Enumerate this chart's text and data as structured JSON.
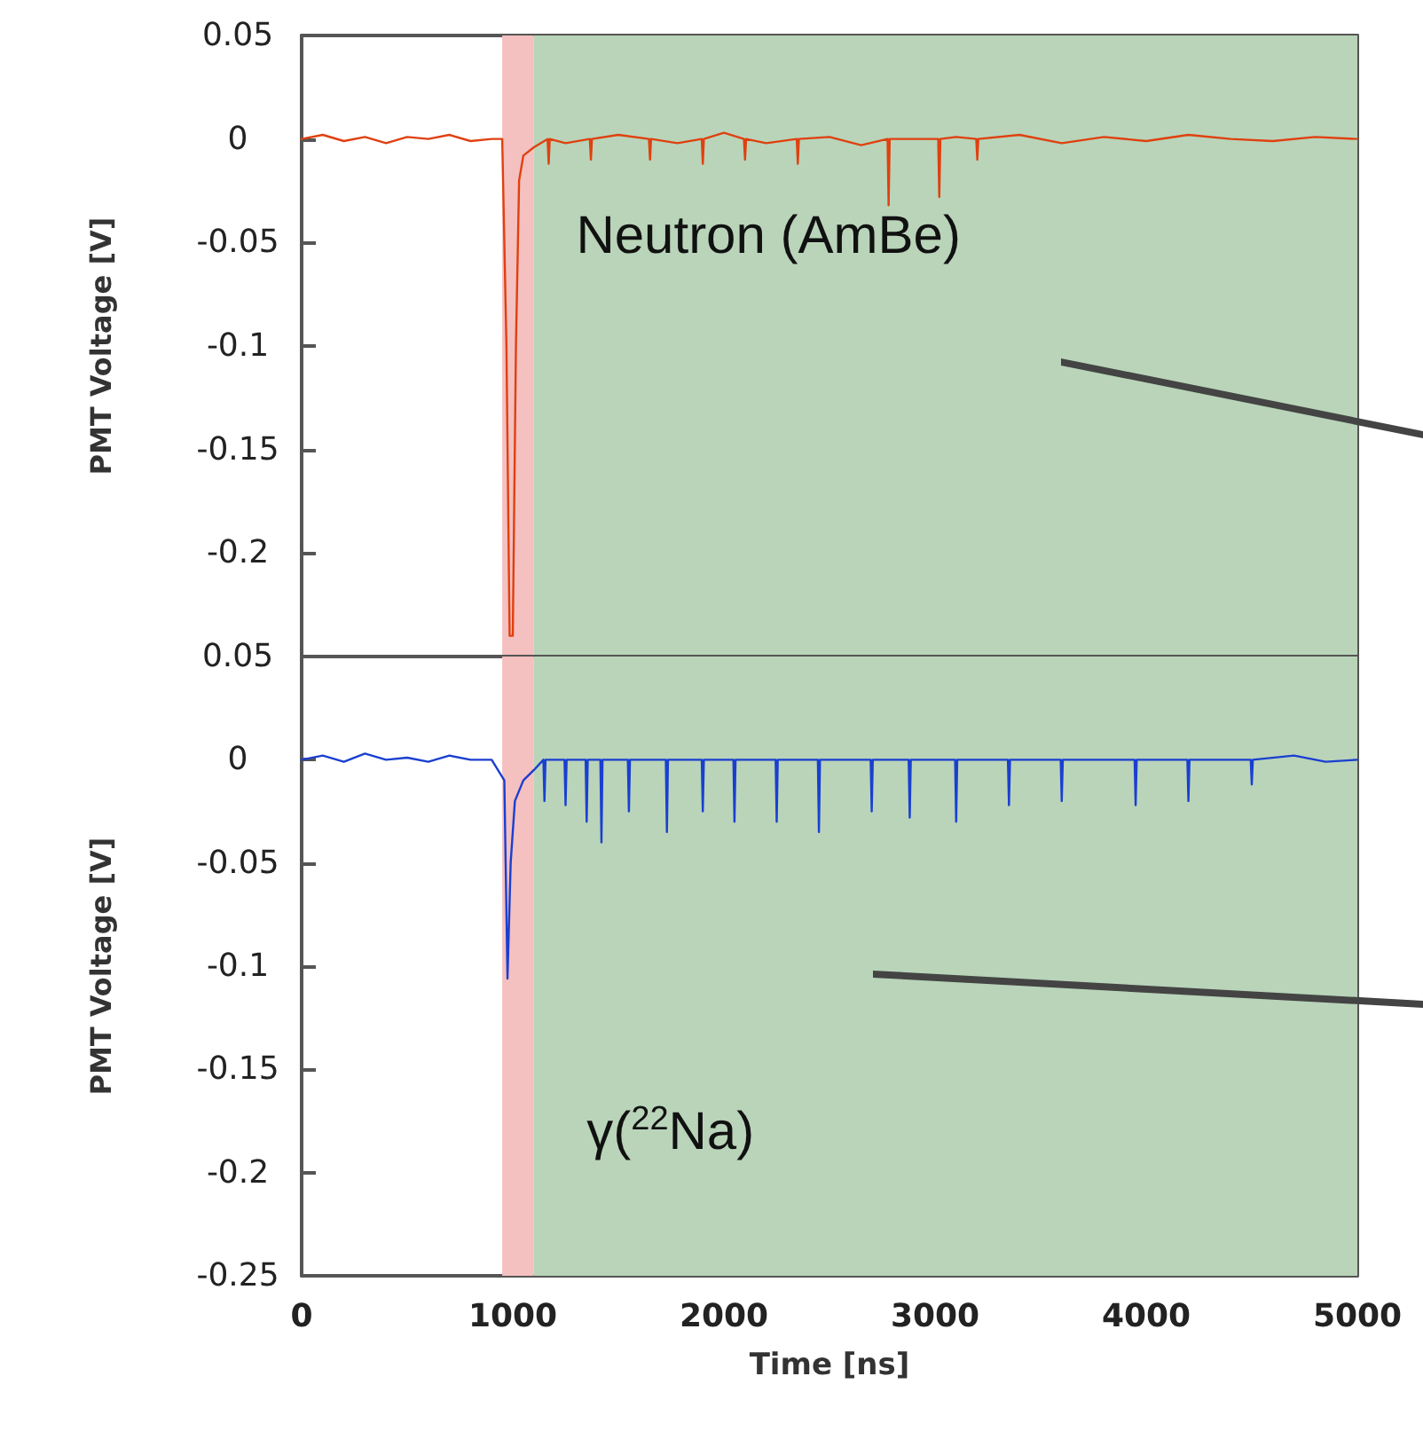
{
  "chart_data": [
    {
      "type": "line",
      "ylabel": "PMT Voltage [V]",
      "tick_labels": "y",
      "grid": false,
      "marker": "none",
      "annotations": [
        "Neutron (AmBe)"
      ],
      "xlim": [
        0,
        5000
      ],
      "xticks": [
        0,
        1000,
        2000,
        3000,
        4000,
        5000
      ],
      "ylim": [
        -0.25,
        0.05
      ],
      "yticks": [
        0.05,
        0,
        -0.05,
        -0.1,
        -0.15,
        -0.2,
        {
          "value": -0.25,
          "label": null
        }
      ],
      "bands": [
        {
          "axis": "x",
          "from": 950,
          "to": 1100,
          "color": "#f4c0c0"
        },
        {
          "axis": "x",
          "from": 1100,
          "to": 5000,
          "color": "#b9d4b9"
        }
      ],
      "series": [
        {
          "color": "#e0400f",
          "x": [
            0,
            100,
            200,
            300,
            400,
            500,
            600,
            700,
            800,
            900,
            950,
            970,
            985,
            1000,
            1015,
            1030,
            1050,
            1100,
            1165,
            1170,
            1175,
            1250,
            1365,
            1370,
            1375,
            1500,
            1645,
            1650,
            1655,
            1780,
            1895,
            1900,
            1905,
            2000,
            2095,
            2100,
            2105,
            2200,
            2345,
            2350,
            2355,
            2500,
            2650,
            2775,
            2780,
            2785,
            2900,
            3015,
            3020,
            3025,
            3100,
            3195,
            3200,
            3205,
            3400,
            3600,
            3800,
            4000,
            4200,
            4400,
            4600,
            4800,
            5000
          ],
          "values": [
            0,
            0.002,
            -0.001,
            0.001,
            -0.002,
            0.001,
            0,
            0.002,
            -0.001,
            0,
            0,
            -0.1,
            -0.24,
            -0.24,
            -0.1,
            -0.02,
            -0.008,
            -0.004,
            0,
            -0.012,
            0,
            -0.002,
            0,
            -0.01,
            0,
            0.002,
            0,
            -0.01,
            0,
            -0.002,
            0,
            -0.012,
            0,
            0.003,
            0,
            -0.01,
            0,
            -0.002,
            0,
            -0.012,
            0,
            0.001,
            -0.003,
            0,
            -0.032,
            0,
            0,
            0,
            -0.028,
            0,
            0.001,
            0,
            -0.01,
            0,
            0.002,
            -0.002,
            0.001,
            -0.001,
            0.002,
            0,
            -0.001,
            0.001,
            0
          ]
        }
      ]
    },
    {
      "type": "line",
      "ylabel": "PMT Voltage [V]",
      "xlabel": "Time [ns]",
      "grid": false,
      "marker": "none",
      "annotations": [
        "γ($^{22}$Na)"
      ],
      "xlim": [
        0,
        5000
      ],
      "xticks": [
        0,
        1000,
        2000,
        3000,
        4000,
        5000
      ],
      "ylim": [
        -0.25,
        0.05
      ],
      "yticks": [
        0.05,
        0,
        -0.05,
        -0.1,
        -0.15,
        -0.2,
        -0.25
      ],
      "bands": [
        {
          "axis": "x",
          "from": 950,
          "to": 1100,
          "color": "#f4c0c0"
        },
        {
          "axis": "x",
          "from": 1100,
          "to": 5000,
          "color": "#b9d4b9"
        }
      ],
      "series": [
        {
          "color": "#1a3fd0",
          "x": [
            0,
            100,
            200,
            300,
            400,
            500,
            600,
            700,
            800,
            900,
            960,
            975,
            990,
            1010,
            1050,
            1100,
            1145,
            1150,
            1155,
            1245,
            1250,
            1255,
            1345,
            1350,
            1355,
            1415,
            1420,
            1425,
            1545,
            1550,
            1555,
            1725,
            1730,
            1735,
            1895,
            1900,
            1905,
            2045,
            2050,
            2055,
            2245,
            2250,
            2255,
            2445,
            2450,
            2455,
            2695,
            2700,
            2705,
            2875,
            2880,
            2885,
            3095,
            3100,
            3105,
            3345,
            3350,
            3355,
            3595,
            3600,
            3605,
            3945,
            3950,
            3955,
            4195,
            4200,
            4205,
            4495,
            4500,
            4505,
            4700,
            4850,
            5000
          ],
          "values": [
            0,
            0.002,
            -0.001,
            0.003,
            0,
            0.001,
            -0.001,
            0.002,
            0,
            0,
            -0.01,
            -0.106,
            -0.05,
            -0.02,
            -0.01,
            -0.005,
            0,
            -0.02,
            0,
            0,
            -0.022,
            0,
            0,
            -0.03,
            0,
            0,
            -0.04,
            0,
            0,
            -0.025,
            0,
            0,
            -0.035,
            0,
            0,
            -0.025,
            0,
            0,
            -0.03,
            0,
            0,
            -0.03,
            0,
            0,
            -0.035,
            0,
            0,
            -0.025,
            0,
            0,
            -0.028,
            0,
            0,
            -0.03,
            0,
            0,
            -0.022,
            0,
            0,
            -0.02,
            0,
            0,
            -0.022,
            0,
            0,
            -0.02,
            0,
            0,
            -0.012,
            0,
            0.002,
            -0.001,
            0
          ]
        }
      ]
    }
  ]
}
